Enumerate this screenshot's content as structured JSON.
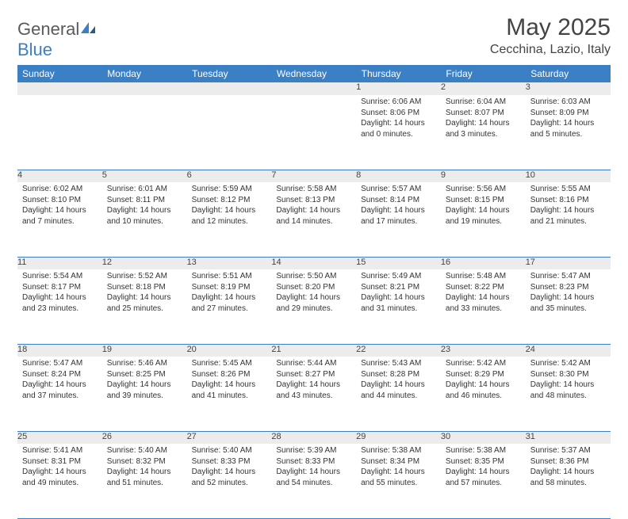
{
  "brand": {
    "part1": "General",
    "part2": "Blue"
  },
  "title": "May 2025",
  "location": "Cecchina, Lazio, Italy",
  "colors": {
    "header_bg": "#3b7fc4",
    "header_text": "#ffffff",
    "daynum_bg": "#ececec",
    "border": "#3b7fc4",
    "text": "#333333",
    "logo_gray": "#5a5a5a",
    "logo_blue": "#3b7fc4",
    "page_bg": "#ffffff"
  },
  "weekdays": [
    "Sunday",
    "Monday",
    "Tuesday",
    "Wednesday",
    "Thursday",
    "Friday",
    "Saturday"
  ],
  "weeks": [
    [
      null,
      null,
      null,
      null,
      {
        "n": "1",
        "sr": "6:06 AM",
        "ss": "8:06 PM",
        "dl": "14 hours and 0 minutes."
      },
      {
        "n": "2",
        "sr": "6:04 AM",
        "ss": "8:07 PM",
        "dl": "14 hours and 3 minutes."
      },
      {
        "n": "3",
        "sr": "6:03 AM",
        "ss": "8:09 PM",
        "dl": "14 hours and 5 minutes."
      }
    ],
    [
      {
        "n": "4",
        "sr": "6:02 AM",
        "ss": "8:10 PM",
        "dl": "14 hours and 7 minutes."
      },
      {
        "n": "5",
        "sr": "6:01 AM",
        "ss": "8:11 PM",
        "dl": "14 hours and 10 minutes."
      },
      {
        "n": "6",
        "sr": "5:59 AM",
        "ss": "8:12 PM",
        "dl": "14 hours and 12 minutes."
      },
      {
        "n": "7",
        "sr": "5:58 AM",
        "ss": "8:13 PM",
        "dl": "14 hours and 14 minutes."
      },
      {
        "n": "8",
        "sr": "5:57 AM",
        "ss": "8:14 PM",
        "dl": "14 hours and 17 minutes."
      },
      {
        "n": "9",
        "sr": "5:56 AM",
        "ss": "8:15 PM",
        "dl": "14 hours and 19 minutes."
      },
      {
        "n": "10",
        "sr": "5:55 AM",
        "ss": "8:16 PM",
        "dl": "14 hours and 21 minutes."
      }
    ],
    [
      {
        "n": "11",
        "sr": "5:54 AM",
        "ss": "8:17 PM",
        "dl": "14 hours and 23 minutes."
      },
      {
        "n": "12",
        "sr": "5:52 AM",
        "ss": "8:18 PM",
        "dl": "14 hours and 25 minutes."
      },
      {
        "n": "13",
        "sr": "5:51 AM",
        "ss": "8:19 PM",
        "dl": "14 hours and 27 minutes."
      },
      {
        "n": "14",
        "sr": "5:50 AM",
        "ss": "8:20 PM",
        "dl": "14 hours and 29 minutes."
      },
      {
        "n": "15",
        "sr": "5:49 AM",
        "ss": "8:21 PM",
        "dl": "14 hours and 31 minutes."
      },
      {
        "n": "16",
        "sr": "5:48 AM",
        "ss": "8:22 PM",
        "dl": "14 hours and 33 minutes."
      },
      {
        "n": "17",
        "sr": "5:47 AM",
        "ss": "8:23 PM",
        "dl": "14 hours and 35 minutes."
      }
    ],
    [
      {
        "n": "18",
        "sr": "5:47 AM",
        "ss": "8:24 PM",
        "dl": "14 hours and 37 minutes."
      },
      {
        "n": "19",
        "sr": "5:46 AM",
        "ss": "8:25 PM",
        "dl": "14 hours and 39 minutes."
      },
      {
        "n": "20",
        "sr": "5:45 AM",
        "ss": "8:26 PM",
        "dl": "14 hours and 41 minutes."
      },
      {
        "n": "21",
        "sr": "5:44 AM",
        "ss": "8:27 PM",
        "dl": "14 hours and 43 minutes."
      },
      {
        "n": "22",
        "sr": "5:43 AM",
        "ss": "8:28 PM",
        "dl": "14 hours and 44 minutes."
      },
      {
        "n": "23",
        "sr": "5:42 AM",
        "ss": "8:29 PM",
        "dl": "14 hours and 46 minutes."
      },
      {
        "n": "24",
        "sr": "5:42 AM",
        "ss": "8:30 PM",
        "dl": "14 hours and 48 minutes."
      }
    ],
    [
      {
        "n": "25",
        "sr": "5:41 AM",
        "ss": "8:31 PM",
        "dl": "14 hours and 49 minutes."
      },
      {
        "n": "26",
        "sr": "5:40 AM",
        "ss": "8:32 PM",
        "dl": "14 hours and 51 minutes."
      },
      {
        "n": "27",
        "sr": "5:40 AM",
        "ss": "8:33 PM",
        "dl": "14 hours and 52 minutes."
      },
      {
        "n": "28",
        "sr": "5:39 AM",
        "ss": "8:33 PM",
        "dl": "14 hours and 54 minutes."
      },
      {
        "n": "29",
        "sr": "5:38 AM",
        "ss": "8:34 PM",
        "dl": "14 hours and 55 minutes."
      },
      {
        "n": "30",
        "sr": "5:38 AM",
        "ss": "8:35 PM",
        "dl": "14 hours and 57 minutes."
      },
      {
        "n": "31",
        "sr": "5:37 AM",
        "ss": "8:36 PM",
        "dl": "14 hours and 58 minutes."
      }
    ]
  ],
  "labels": {
    "sunrise": "Sunrise:",
    "sunset": "Sunset:",
    "daylight": "Daylight:"
  }
}
